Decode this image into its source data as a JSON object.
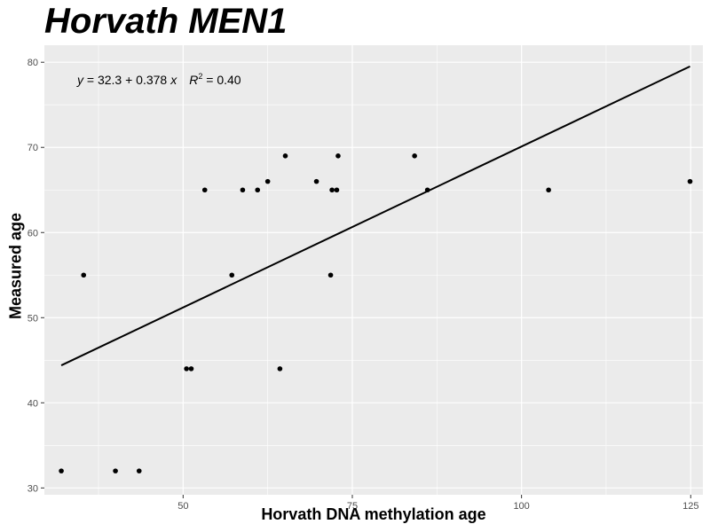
{
  "chart_data": {
    "type": "scatter",
    "title": "Horvath MEN1",
    "xlabel": "Horvath DNA methylation age",
    "ylabel": "Measured age",
    "xlim": [
      29.5,
      126.8
    ],
    "ylim": [
      29.2,
      82.0
    ],
    "x_ticks": [
      50,
      75,
      100,
      125
    ],
    "y_ticks": [
      30,
      40,
      50,
      60,
      70,
      80
    ],
    "grid": true,
    "points": [
      {
        "x": 32.0,
        "y": 32
      },
      {
        "x": 35.3,
        "y": 55
      },
      {
        "x": 40.0,
        "y": 32
      },
      {
        "x": 43.5,
        "y": 32
      },
      {
        "x": 50.5,
        "y": 44
      },
      {
        "x": 51.2,
        "y": 44
      },
      {
        "x": 53.2,
        "y": 65
      },
      {
        "x": 57.2,
        "y": 55
      },
      {
        "x": 58.8,
        "y": 65
      },
      {
        "x": 61.0,
        "y": 65
      },
      {
        "x": 62.5,
        "y": 66
      },
      {
        "x": 64.3,
        "y": 44
      },
      {
        "x": 65.1,
        "y": 69
      },
      {
        "x": 69.7,
        "y": 66
      },
      {
        "x": 71.8,
        "y": 55
      },
      {
        "x": 72.0,
        "y": 65
      },
      {
        "x": 72.7,
        "y": 65
      },
      {
        "x": 72.9,
        "y": 69
      },
      {
        "x": 84.2,
        "y": 69
      },
      {
        "x": 86.1,
        "y": 65
      },
      {
        "x": 104.0,
        "y": 65
      },
      {
        "x": 124.9,
        "y": 66
      }
    ],
    "fit_line": {
      "x1": 32.0,
      "x2": 124.9,
      "intercept": 32.3,
      "slope": 0.378
    },
    "annotation": {
      "y_var": "y",
      "equals": " = 32.3",
      "plus": " + ",
      "slope": "0.378",
      "x_var": "x",
      "r": "R",
      "sup": "2",
      "r2_value": " = 0.40"
    }
  },
  "colors": {
    "panel_bg": "#ebebeb",
    "grid_major": "#ffffff",
    "point": "#000000",
    "line": "#000000"
  }
}
